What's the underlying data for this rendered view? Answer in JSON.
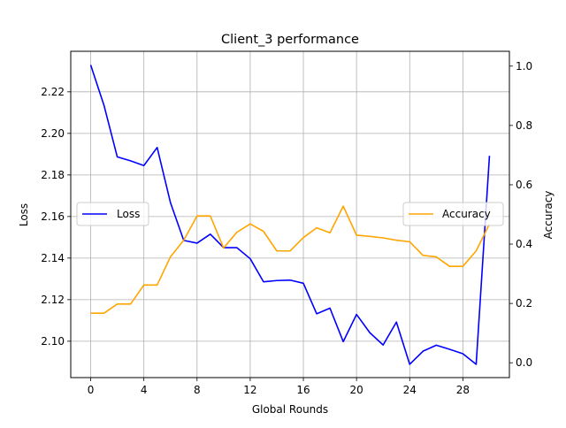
{
  "chart_data": {
    "type": "line",
    "title": "Client_3 performance",
    "xlabel": "Global Rounds",
    "ylabel_left": "Loss",
    "ylabel_right": "Accuracy",
    "x": [
      0,
      1,
      2,
      3,
      4,
      5,
      6,
      7,
      8,
      9,
      10,
      11,
      12,
      13,
      14,
      15,
      16,
      17,
      18,
      19,
      20,
      21,
      22,
      23,
      24,
      25,
      26,
      27,
      28,
      29,
      30
    ],
    "xlim": [
      -1.5,
      31.5
    ],
    "xticks": [
      0,
      4,
      8,
      12,
      16,
      20,
      24,
      28
    ],
    "grid": true,
    "left_axis": {
      "ylim": [
        2.0825,
        2.2395
      ],
      "ticks": [
        2.1,
        2.12,
        2.14,
        2.16,
        2.18,
        2.2,
        2.22
      ],
      "tick_labels": [
        "2.10",
        "2.12",
        "2.14",
        "2.16",
        "2.18",
        "2.20",
        "2.22"
      ]
    },
    "right_axis": {
      "ylim": [
        -0.05,
        1.05
      ],
      "ticks": [
        0.0,
        0.2,
        0.4,
        0.6,
        0.8,
        1.0
      ],
      "tick_labels": [
        "0.0",
        "0.2",
        "0.4",
        "0.6",
        "0.8",
        "1.0"
      ]
    },
    "series": [
      {
        "name": "Loss",
        "axis": "left",
        "color": "#0000ff",
        "legend": "center-left",
        "values": [
          2.2329,
          2.2135,
          2.1887,
          2.1868,
          2.1845,
          2.1932,
          2.1667,
          2.1485,
          2.1472,
          2.1515,
          2.145,
          2.145,
          2.1397,
          2.1286,
          2.1292,
          2.1294,
          2.1279,
          2.1132,
          2.1159,
          2.0998,
          2.1129,
          2.1041,
          2.0982,
          2.1092,
          2.0889,
          2.0952,
          2.0981,
          2.0961,
          2.094,
          2.0889,
          2.1892
        ]
      },
      {
        "name": "Accuracy",
        "axis": "right",
        "color": "#ffa500",
        "legend": "center-right",
        "values": [
          0.167,
          0.167,
          0.198,
          0.198,
          0.262,
          0.262,
          0.357,
          0.413,
          0.495,
          0.495,
          0.387,
          0.44,
          0.468,
          0.443,
          0.377,
          0.377,
          0.422,
          0.455,
          0.438,
          0.528,
          0.43,
          0.426,
          0.421,
          0.413,
          0.408,
          0.362,
          0.357,
          0.325,
          0.325,
          0.377,
          0.468
        ]
      }
    ]
  }
}
